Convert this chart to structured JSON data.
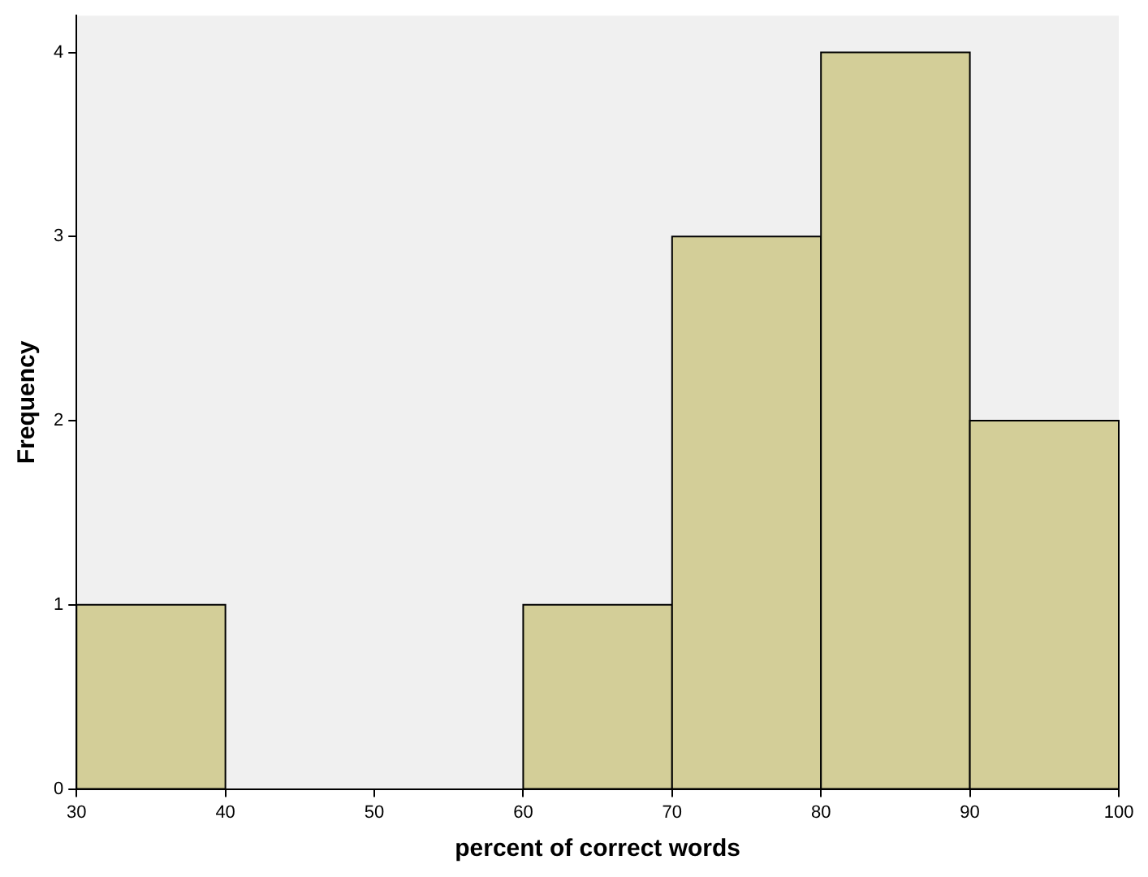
{
  "chart_data": {
    "type": "histogram",
    "xlabel": "percent of correct words",
    "ylabel": "Frequency",
    "bins": [
      30,
      40,
      50,
      60,
      70,
      80,
      90,
      100
    ],
    "values": [
      1,
      0,
      0,
      1,
      3,
      4,
      2
    ],
    "color": "#d3ce98",
    "xlim": [
      30,
      100
    ],
    "xticks": [
      30,
      40,
      50,
      60,
      70,
      80,
      90,
      100
    ],
    "ylim": [
      0,
      4.2
    ],
    "yticks": [
      0,
      1,
      2,
      3,
      4
    ],
    "grid": false
  }
}
